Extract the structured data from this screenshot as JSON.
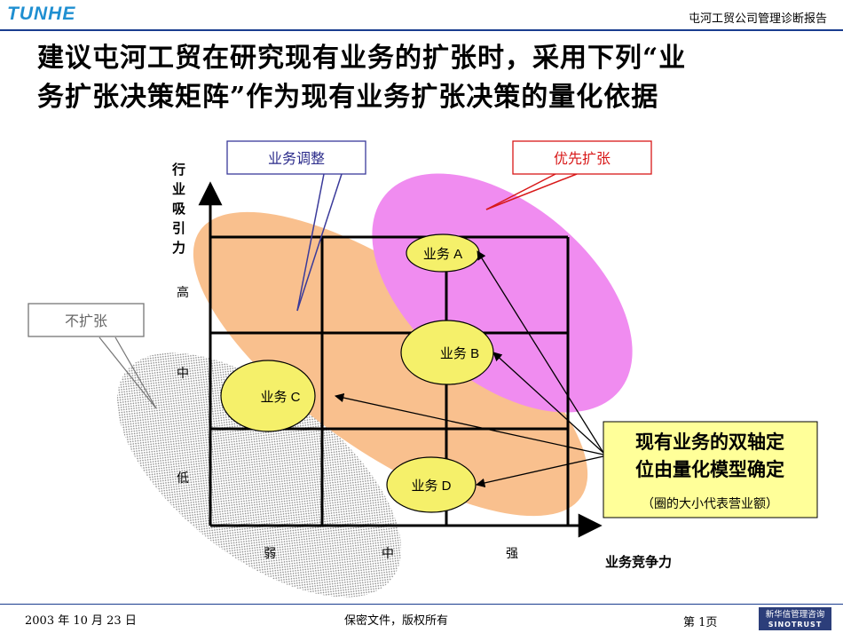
{
  "header": {
    "logo_text": "TUNHE",
    "report_name": "屯河工贸公司管理诊断报告"
  },
  "title": {
    "line1": "建议屯河工贸在研究现有业务的扩张时，采用下列“业",
    "line2": "务扩张决策矩阵”作为现有业务扩张决策的量化依据"
  },
  "callouts": {
    "adjust": "业务调整",
    "expand": "优先扩张",
    "no_expand": "不扩张"
  },
  "axes": {
    "y_label": [
      "行",
      "业",
      "吸",
      "引",
      "力"
    ],
    "y_ticks": [
      "高",
      "中",
      "低"
    ],
    "x_ticks": [
      "弱",
      "中",
      "强"
    ],
    "x_label": "业务竞争力"
  },
  "businesses": [
    {
      "label": "业务 A"
    },
    {
      "label": "业务 B"
    },
    {
      "label": "业务 C"
    },
    {
      "label": "业务 D"
    }
  ],
  "note": {
    "line1": "现有业务的双轴定",
    "line2": "位由量化模型确定",
    "sub": "（圈的大小代表营业额）"
  },
  "colors": {
    "orange_zone": "#f9c08e",
    "pink_zone": "#f08cf0",
    "bubble": "#f5f06a",
    "note_bg": "#ffff99",
    "header_blue": "#1a3d8f"
  },
  "footer": {
    "date": "2003 年 10 月 23 日",
    "confidential": "保密文件，版权所有",
    "page": "第 1页",
    "logo_cn": "新华信管理咨询",
    "logo_en": "SINOTRUST"
  }
}
